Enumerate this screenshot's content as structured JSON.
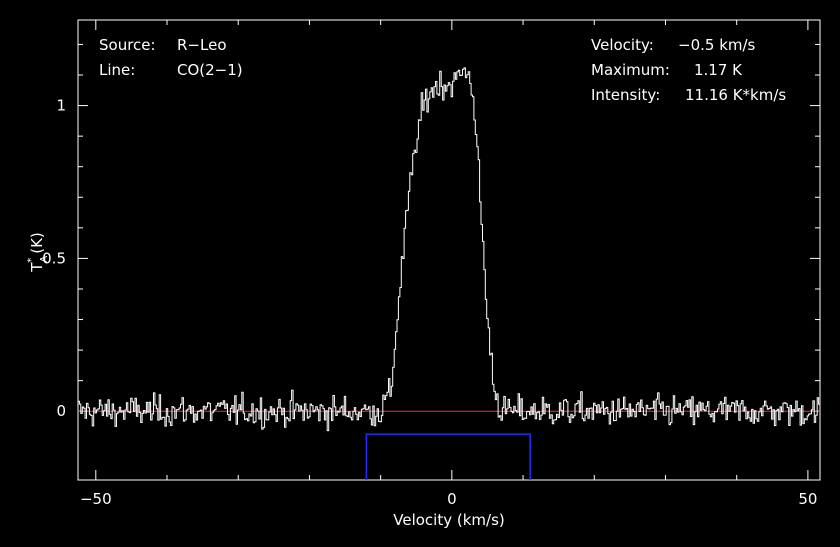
{
  "chart_data": {
    "type": "line",
    "xlabel": "Velocity (km/s)",
    "ylabel": "T*A (K)",
    "xlim": [
      -52.5,
      51.7
    ],
    "ylim": [
      -0.225,
      1.28
    ],
    "x_ticks": [
      -50,
      0,
      50
    ],
    "y_ticks": [
      0,
      0.5,
      1
    ],
    "x_tick_labels": [
      "−50",
      "0",
      "50"
    ],
    "y_tick_labels": [
      "0",
      "0.5",
      "1"
    ],
    "baseline": {
      "value": 0,
      "color": "#ff2a2a"
    },
    "window": {
      "x_from": -12,
      "x_to": 11,
      "y_from": -0.225,
      "y_to": -0.075,
      "color": "#2a2aff"
    },
    "series": [
      {
        "color": "#ffffff",
        "style": "histogram-step",
        "channel_width": 0.2,
        "noise_rms": 0.035,
        "line_profile": [
          [
            -12,
            0.0
          ],
          [
            -10,
            0.0
          ],
          [
            -8.5,
            0.07
          ],
          [
            -7.5,
            0.35
          ],
          [
            -6.5,
            0.6
          ],
          [
            -5.5,
            0.8
          ],
          [
            -4.5,
            0.95
          ],
          [
            -3.5,
            1.03
          ],
          [
            -2,
            1.07
          ],
          [
            0,
            1.07
          ],
          [
            2,
            1.12
          ],
          [
            3,
            1.05
          ],
          [
            4,
            0.7
          ],
          [
            5,
            0.3
          ],
          [
            6,
            0.07
          ],
          [
            7,
            0.0
          ],
          [
            12,
            0.0
          ]
        ]
      }
    ],
    "annotations": {
      "source_label": "Source:",
      "source_value": "R−Leo",
      "line_label": "Line:",
      "line_value": "CO(2−1)",
      "velocity_label": "Velocity:",
      "velocity_value": "−0.5 km/s",
      "maximum_label": "Maximum:",
      "maximum_value": "1.17 K",
      "intensity_label": "Intensity:",
      "intensity_value": "11.16 K*km/s"
    }
  }
}
